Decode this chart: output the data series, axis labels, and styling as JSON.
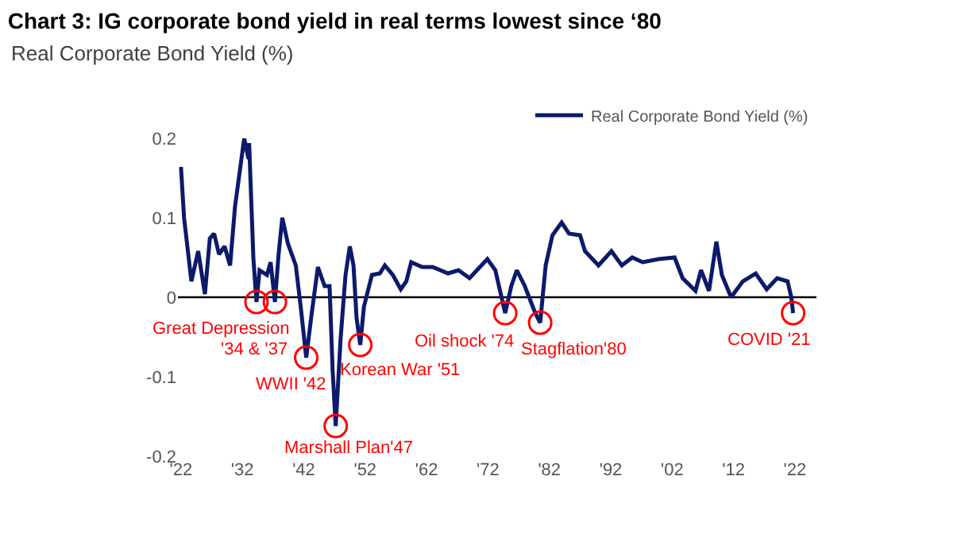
{
  "chart_data": {
    "type": "line",
    "title": "Chart 3: IG corporate bond yield in real terms lowest since ‘80",
    "subtitle": "Real Corporate Bond Yield (%)",
    "series": [
      {
        "name": "Real Corporate Bond Yield (%)",
        "color": "#0c1a6b",
        "x": [
          1922,
          1922.5,
          1923.7,
          1924.8,
          1925.9,
          1926.7,
          1927.4,
          1928.2,
          1929.1,
          1930.0,
          1930.8,
          1932.3,
          1933.0,
          1933.1,
          1933.8,
          1934.3,
          1934.8,
          1936.0,
          1936.6,
          1937.3,
          1937.9,
          1938.5,
          1939.4,
          1940.7,
          1941.5,
          1942.4,
          1943.3,
          1944.3,
          1945.4,
          1946.2,
          1946.7,
          1947.2,
          1948.0,
          1948.8,
          1949.5,
          1950.1,
          1950.6,
          1951.2,
          1951.8,
          1953.1,
          1954.4,
          1955.2,
          1956.5,
          1957.8,
          1958.7,
          1959.5,
          1961.3,
          1963.0,
          1965.5,
          1967.2,
          1969.0,
          1971.9,
          1973.2,
          1974.8,
          1975.8,
          1976.7,
          1978.0,
          1979.7,
          1980.5,
          1981.4,
          1982.5,
          1984.0,
          1985.2,
          1987.0,
          1987.8,
          1990.0,
          1992.1,
          1993.8,
          1995.5,
          1997.2,
          1999.8,
          2002.4,
          2003.7,
          2005.8,
          2006.7,
          2008.0,
          2009.2,
          2010.1,
          2011.6,
          2013.5,
          2015.6,
          2017.4,
          2019.1,
          2020.8,
          2021.4,
          2021.7
        ],
        "values": [
          0.164,
          0.1,
          0.02,
          0.058,
          0.004,
          0.074,
          0.08,
          0.054,
          0.064,
          0.04,
          0.114,
          0.2,
          0.174,
          0.194,
          0.048,
          -0.006,
          0.034,
          0.028,
          0.044,
          -0.006,
          0.054,
          0.1,
          0.068,
          0.04,
          -0.012,
          -0.076,
          -0.02,
          0.038,
          0.014,
          0.014,
          -0.092,
          -0.162,
          -0.052,
          0.028,
          0.064,
          0.04,
          -0.026,
          -0.06,
          -0.012,
          0.028,
          0.03,
          0.04,
          0.028,
          0.01,
          0.02,
          0.044,
          0.038,
          0.038,
          0.03,
          0.034,
          0.024,
          0.048,
          0.034,
          -0.02,
          0.014,
          0.034,
          0.014,
          -0.02,
          -0.032,
          0.04,
          0.078,
          0.094,
          0.08,
          0.078,
          0.058,
          0.04,
          0.058,
          0.04,
          0.05,
          0.044,
          0.048,
          0.05,
          0.024,
          0.008,
          0.034,
          0.008,
          0.07,
          0.028,
          0,
          0.02,
          0.03,
          0.01,
          0.024,
          0.02,
          0,
          -0.02
        ]
      }
    ],
    "xlim": [
      1921.5,
      2025.5
    ],
    "xticks": [
      {
        "value": 1922,
        "label": "'22"
      },
      {
        "value": 1932,
        "label": "'32"
      },
      {
        "value": 1942,
        "label": "'42"
      },
      {
        "value": 1952,
        "label": "'52"
      },
      {
        "value": 1962,
        "label": "'62"
      },
      {
        "value": 1972,
        "label": "'72"
      },
      {
        "value": 1982,
        "label": "'82"
      },
      {
        "value": 1992,
        "label": "'92"
      },
      {
        "value": 2002,
        "label": "'02"
      },
      {
        "value": 2012,
        "label": "'12"
      },
      {
        "value": 2022,
        "label": "'22"
      }
    ],
    "ylim": [
      -0.2,
      0.2
    ],
    "yticks": [
      -0.2,
      -0.1,
      0,
      0.1,
      0.2
    ],
    "ref_lines": [
      {
        "axis": "y",
        "value": 0,
        "color": "#000000"
      }
    ],
    "grid": false,
    "legend": "top right",
    "marker": "none",
    "line_style": "solid",
    "annotations": [
      {
        "text": "Great Depression",
        "x": 1934.3,
        "y": -0.006
      },
      {
        "text": "'34 & '37",
        "x": 1937.3,
        "y": -0.006
      },
      {
        "text": "WWII '42",
        "x": 1942.4,
        "y": -0.076
      },
      {
        "text": "Marshall Plan'47",
        "x": 1947.2,
        "y": -0.162
      },
      {
        "text": "Korean War '51",
        "x": 1951.2,
        "y": -0.06
      },
      {
        "text": "Oil shock '74",
        "x": 1974.8,
        "y": -0.02
      },
      {
        "text": "Stagflation'80",
        "x": 1980.5,
        "y": -0.032
      },
      {
        "text": "COVID '21",
        "x": 2021.7,
        "y": -0.02
      }
    ]
  }
}
